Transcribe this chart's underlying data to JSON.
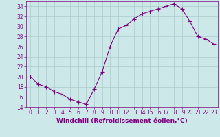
{
  "hours": [
    0,
    1,
    2,
    3,
    4,
    5,
    6,
    7,
    8,
    9,
    10,
    11,
    12,
    13,
    14,
    15,
    16,
    17,
    18,
    19,
    20,
    21,
    22,
    23
  ],
  "values": [
    20.0,
    18.5,
    18.0,
    17.0,
    16.5,
    15.5,
    15.0,
    14.5,
    17.5,
    21.0,
    26.0,
    29.5,
    30.2,
    31.5,
    32.5,
    33.0,
    33.5,
    34.0,
    34.5,
    33.5,
    31.0,
    28.0,
    27.5,
    26.5
  ],
  "line_color": "#800080",
  "marker": "+",
  "marker_size": 4,
  "marker_linewidth": 0.8,
  "line_width": 0.8,
  "background_color": "#cce8e8",
  "grid_color": "#aacccc",
  "xlabel": "Windchill (Refroidissement éolien,°C)",
  "xlabel_color": "#800080",
  "ylim": [
    14,
    35
  ],
  "yticks": [
    14,
    16,
    18,
    20,
    22,
    24,
    26,
    28,
    30,
    32,
    34
  ],
  "xticks": [
    0,
    1,
    2,
    3,
    4,
    5,
    6,
    7,
    8,
    9,
    10,
    11,
    12,
    13,
    14,
    15,
    16,
    17,
    18,
    19,
    20,
    21,
    22,
    23
  ],
  "tick_color": "#800080",
  "tick_fontsize": 5.5,
  "xlabel_fontsize": 6.5,
  "spine_color": "#800080",
  "xlim": [
    -0.5,
    23.5
  ]
}
